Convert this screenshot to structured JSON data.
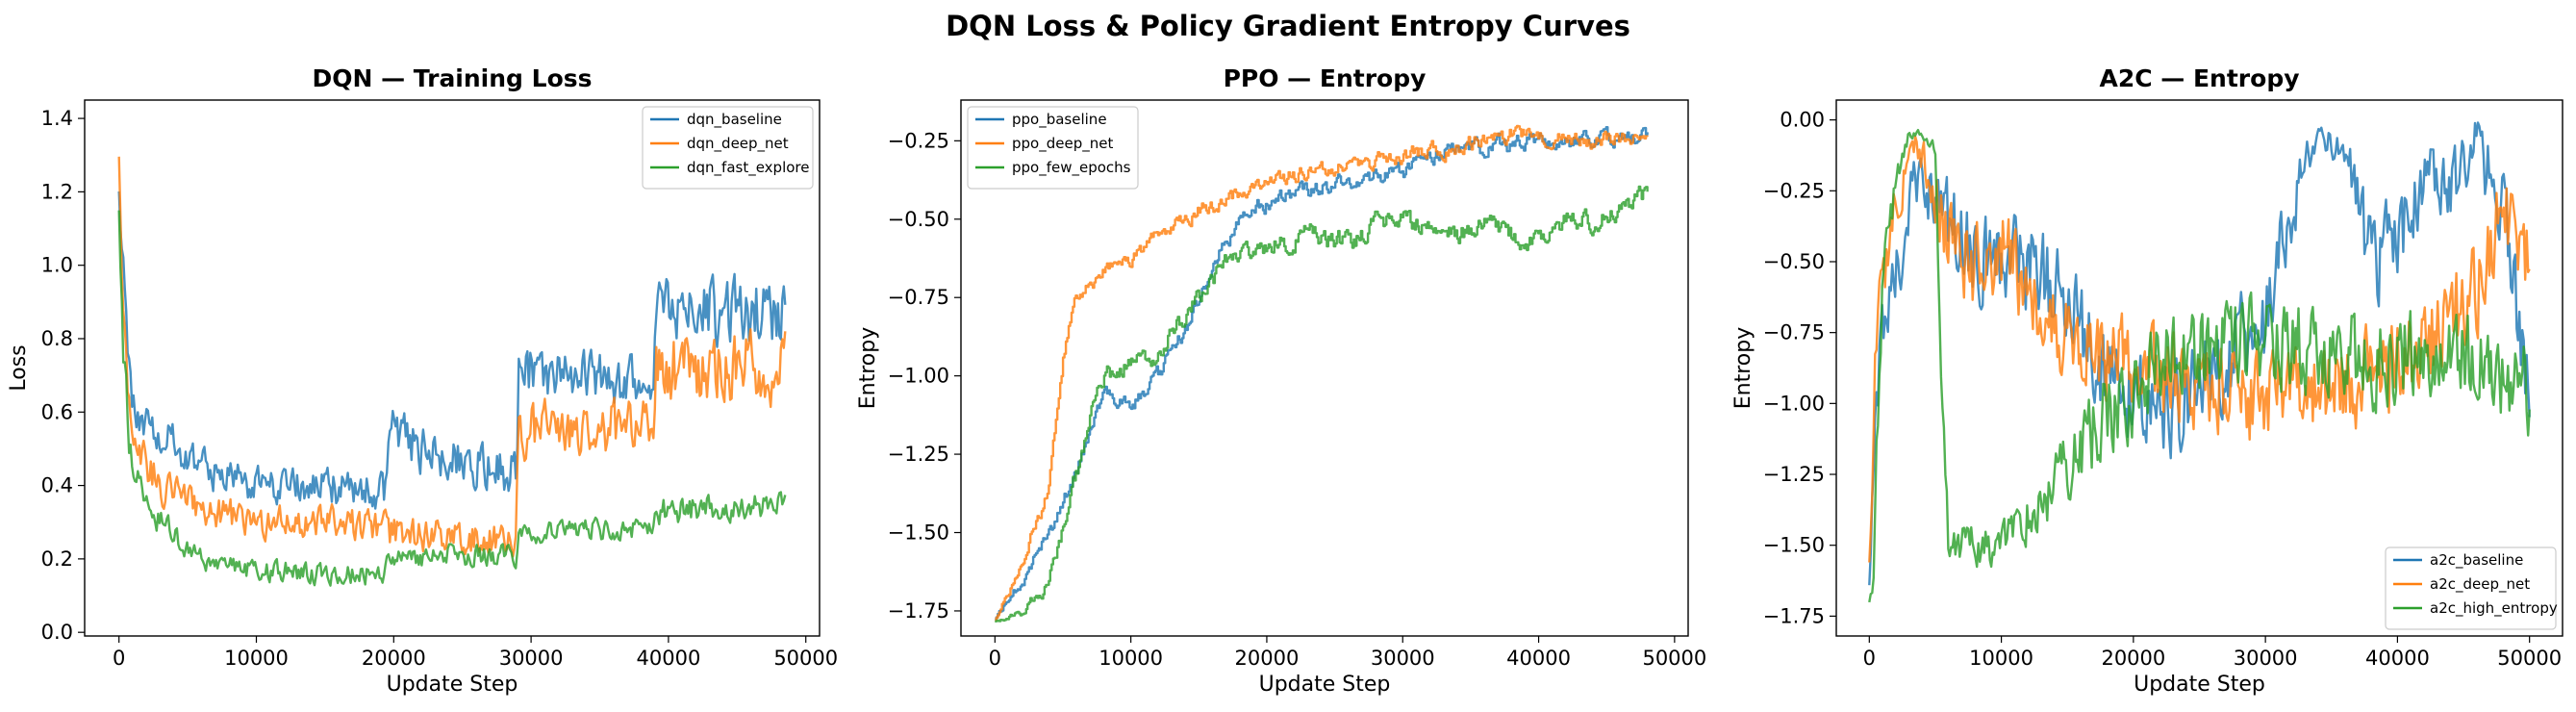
{
  "figure_title": "DQN Loss & Policy Gradient Entropy Curves",
  "colors": {
    "blue": "#1f77b4",
    "orange": "#ff7f0e",
    "green": "#2ca02c"
  },
  "chart_data": [
    {
      "type": "line",
      "title": "DQN — Training Loss",
      "xlabel": "Update Step",
      "ylabel": "Loss",
      "xlim": [
        -2500,
        51000
      ],
      "ylim": [
        -0.01,
        1.45
      ],
      "xticks": [
        0,
        10000,
        20000,
        30000,
        40000,
        50000
      ],
      "yticks": [
        0.0,
        0.2,
        0.4,
        0.6,
        0.8,
        1.0,
        1.2,
        1.4
      ],
      "ytick_labels": [
        "0.0",
        "0.2",
        "0.4",
        "0.6",
        "0.8",
        "1.0",
        "1.2",
        "1.4"
      ],
      "legend_loc": "upper-right",
      "series": [
        {
          "name": "dqn_baseline",
          "color": "blue",
          "x": [
            0,
            500,
            1000,
            1500,
            3000,
            5000,
            8000,
            12000,
            16000,
            19400,
            19600,
            22000,
            25000,
            28900,
            29100,
            32000,
            35000,
            38900,
            39100,
            42000,
            45000,
            48500
          ],
          "y": [
            1.15,
            0.85,
            0.62,
            0.58,
            0.55,
            0.47,
            0.42,
            0.4,
            0.39,
            0.38,
            0.55,
            0.5,
            0.46,
            0.44,
            0.72,
            0.7,
            0.69,
            0.68,
            0.9,
            0.88,
            0.87,
            0.87
          ],
          "amp": [
            0.08,
            0.1,
            0.07,
            0.07,
            0.07,
            0.07,
            0.07,
            0.07,
            0.07,
            0.07,
            0.09,
            0.09,
            0.09,
            0.09,
            0.1,
            0.1,
            0.1,
            0.1,
            0.13,
            0.13,
            0.13,
            0.13
          ]
        },
        {
          "name": "dqn_deep_net",
          "color": "orange",
          "x": [
            0,
            300,
            800,
            1500,
            3000,
            6000,
            10000,
            15000,
            19400,
            19600,
            24000,
            28900,
            29100,
            34000,
            38900,
            39100,
            44000,
            48500
          ],
          "y": [
            1.3,
            0.95,
            0.6,
            0.5,
            0.4,
            0.34,
            0.3,
            0.3,
            0.29,
            0.27,
            0.26,
            0.25,
            0.55,
            0.56,
            0.56,
            0.72,
            0.72,
            0.72
          ],
          "amp": [
            0.1,
            0.12,
            0.08,
            0.08,
            0.07,
            0.06,
            0.06,
            0.06,
            0.06,
            0.06,
            0.06,
            0.06,
            0.1,
            0.1,
            0.1,
            0.13,
            0.13,
            0.13
          ]
        },
        {
          "name": "dqn_fast_explore",
          "color": "green",
          "x": [
            0,
            300,
            800,
            1500,
            3000,
            6000,
            10000,
            15000,
            19400,
            19600,
            24000,
            28900,
            29100,
            34000,
            38900,
            39100,
            44000,
            48500
          ],
          "y": [
            1.15,
            0.75,
            0.5,
            0.4,
            0.3,
            0.2,
            0.17,
            0.16,
            0.16,
            0.2,
            0.21,
            0.21,
            0.27,
            0.28,
            0.28,
            0.33,
            0.34,
            0.35
          ],
          "amp": [
            0.08,
            0.1,
            0.07,
            0.06,
            0.05,
            0.04,
            0.04,
            0.04,
            0.04,
            0.04,
            0.04,
            0.04,
            0.04,
            0.04,
            0.04,
            0.05,
            0.05,
            0.05
          ]
        }
      ]
    },
    {
      "type": "line",
      "title": "PPO — Entropy",
      "xlabel": "Update Step",
      "ylabel": "Entropy",
      "xlim": [
        -2500,
        51000
      ],
      "ylim": [
        -1.83,
        -0.12
      ],
      "xticks": [
        0,
        10000,
        20000,
        30000,
        40000,
        50000
      ],
      "yticks": [
        -1.75,
        -1.5,
        -1.25,
        -1.0,
        -0.75,
        -0.5,
        -0.25
      ],
      "ytick_labels": [
        "−1.75",
        "−1.50",
        "−1.25",
        "−1.00",
        "−0.75",
        "−0.50",
        "−0.25"
      ],
      "legend_loc": "upper-left",
      "series": [
        {
          "name": "ppo_baseline",
          "color": "blue",
          "x": [
            0,
            2000,
            4000,
            6000,
            8000,
            10000,
            12000,
            14000,
            16000,
            18000,
            20000,
            22000,
            24000,
            26000,
            28000,
            30000,
            32000,
            34000,
            36000,
            38000,
            40000,
            42000,
            44000,
            46000,
            48000
          ],
          "y": [
            -1.78,
            -1.65,
            -1.5,
            -1.3,
            -1.05,
            -1.1,
            -1.0,
            -0.85,
            -0.65,
            -0.5,
            -0.45,
            -0.42,
            -0.4,
            -0.38,
            -0.37,
            -0.35,
            -0.3,
            -0.28,
            -0.27,
            -0.26,
            -0.25,
            -0.25,
            -0.24,
            -0.24,
            -0.23
          ],
          "amp": [
            0.01,
            0.03,
            0.04,
            0.04,
            0.04,
            0.04,
            0.04,
            0.04,
            0.04,
            0.04,
            0.04,
            0.04,
            0.04,
            0.04,
            0.04,
            0.04,
            0.04,
            0.04,
            0.04,
            0.04,
            0.04,
            0.04,
            0.04,
            0.04,
            0.04
          ]
        },
        {
          "name": "ppo_deep_net",
          "color": "orange",
          "x": [
            0,
            2000,
            4000,
            5000,
            6000,
            8000,
            10000,
            12000,
            14000,
            16000,
            18000,
            20000,
            22000,
            24000,
            26000,
            28000,
            30000,
            32000,
            34000,
            36000,
            38000,
            40000,
            42000,
            44000,
            46000,
            48000
          ],
          "y": [
            -1.78,
            -1.6,
            -1.35,
            -0.95,
            -0.75,
            -0.65,
            -0.62,
            -0.55,
            -0.5,
            -0.45,
            -0.42,
            -0.38,
            -0.36,
            -0.35,
            -0.33,
            -0.32,
            -0.3,
            -0.28,
            -0.27,
            -0.25,
            -0.23,
            -0.23,
            -0.24,
            -0.25,
            -0.24,
            -0.24
          ],
          "amp": [
            0.01,
            0.03,
            0.04,
            0.05,
            0.04,
            0.04,
            0.04,
            0.04,
            0.04,
            0.04,
            0.04,
            0.04,
            0.04,
            0.04,
            0.04,
            0.04,
            0.04,
            0.04,
            0.04,
            0.04,
            0.04,
            0.04,
            0.04,
            0.04,
            0.04,
            0.04
          ]
        },
        {
          "name": "ppo_few_epochs",
          "color": "green",
          "x": [
            0,
            2000,
            4000,
            6000,
            8000,
            10000,
            12000,
            14000,
            16000,
            18000,
            20000,
            22000,
            24000,
            26000,
            28000,
            30000,
            32000,
            34000,
            36000,
            38000,
            40000,
            42000,
            44000,
            46000,
            48000
          ],
          "y": [
            -1.78,
            -1.75,
            -1.65,
            -1.3,
            -1.0,
            -0.95,
            -0.92,
            -0.8,
            -0.7,
            -0.6,
            -0.58,
            -0.56,
            -0.55,
            -0.58,
            -0.52,
            -0.5,
            -0.52,
            -0.55,
            -0.52,
            -0.55,
            -0.58,
            -0.5,
            -0.5,
            -0.47,
            -0.42
          ],
          "amp": [
            0.01,
            0.02,
            0.04,
            0.05,
            0.05,
            0.05,
            0.05,
            0.05,
            0.05,
            0.05,
            0.05,
            0.05,
            0.05,
            0.05,
            0.05,
            0.05,
            0.05,
            0.05,
            0.05,
            0.05,
            0.05,
            0.05,
            0.05,
            0.05,
            0.05
          ]
        }
      ]
    },
    {
      "type": "line",
      "title": "A2C — Entropy",
      "xlabel": "Update Step",
      "ylabel": "Entropy",
      "xlim": [
        -2500,
        52500
      ],
      "ylim": [
        -1.82,
        0.07
      ],
      "xticks": [
        0,
        10000,
        20000,
        30000,
        40000,
        50000
      ],
      "yticks": [
        -1.75,
        -1.5,
        -1.25,
        -1.0,
        -0.75,
        -0.5,
        -0.25,
        0.0
      ],
      "ytick_labels": [
        "−1.75",
        "−1.50",
        "−1.25",
        "−1.00",
        "−0.75",
        "−0.50",
        "−0.25",
        "0.00"
      ],
      "legend_loc": "lower-right",
      "series": [
        {
          "name": "a2c_baseline",
          "color": "blue",
          "x": [
            0,
            500,
            1000,
            2000,
            3000,
            4000,
            6000,
            8000,
            10000,
            14000,
            18000,
            22000,
            26000,
            30000,
            32000,
            34000,
            36000,
            38000,
            40000,
            42000,
            44000,
            46000,
            48000,
            50000
          ],
          "y": [
            -1.6,
            -1.0,
            -0.7,
            -0.6,
            -0.3,
            -0.2,
            -0.35,
            -0.5,
            -0.45,
            -0.6,
            -0.9,
            -1.05,
            -0.9,
            -0.7,
            -0.3,
            -0.05,
            -0.1,
            -0.5,
            -0.45,
            -0.2,
            -0.25,
            -0.1,
            -0.3,
            -1.0
          ],
          "amp": [
            0.12,
            0.16,
            0.18,
            0.2,
            0.18,
            0.15,
            0.22,
            0.22,
            0.22,
            0.22,
            0.22,
            0.22,
            0.22,
            0.22,
            0.18,
            0.05,
            0.12,
            0.22,
            0.22,
            0.16,
            0.16,
            0.15,
            0.2,
            0.2
          ]
        },
        {
          "name": "a2c_deep_net",
          "color": "orange",
          "x": [
            0,
            500,
            1000,
            2000,
            3000,
            4000,
            6000,
            8000,
            10000,
            14000,
            18000,
            22000,
            26000,
            30000,
            34000,
            38000,
            42000,
            46000,
            48000,
            50000
          ],
          "y": [
            -1.5,
            -0.8,
            -0.6,
            -0.3,
            -0.1,
            -0.1,
            -0.4,
            -0.55,
            -0.45,
            -0.75,
            -0.85,
            -0.9,
            -0.95,
            -1.0,
            -0.95,
            -0.9,
            -0.8,
            -0.6,
            -0.3,
            -0.5
          ],
          "amp": [
            0.12,
            0.18,
            0.2,
            0.15,
            0.1,
            0.1,
            0.22,
            0.22,
            0.22,
            0.22,
            0.22,
            0.22,
            0.22,
            0.22,
            0.22,
            0.22,
            0.22,
            0.22,
            0.2,
            0.2
          ]
        },
        {
          "name": "a2c_high_entropy",
          "color": "green",
          "x": [
            0,
            300,
            600,
            1000,
            2000,
            3000,
            4000,
            5000,
            5500,
            6000,
            8000,
            10000,
            12000,
            14000,
            16000,
            18000,
            20000,
            22000,
            24000,
            26000,
            28000,
            30000,
            34000,
            38000,
            42000,
            46000,
            50000
          ],
          "y": [
            -1.7,
            -1.65,
            -1.1,
            -0.6,
            -0.2,
            -0.05,
            -0.05,
            -0.1,
            -1.0,
            -1.5,
            -1.5,
            -1.5,
            -1.4,
            -1.3,
            -1.15,
            -1.05,
            -0.95,
            -0.85,
            -0.8,
            -0.8,
            -0.78,
            -0.8,
            -0.8,
            -0.85,
            -0.8,
            -0.85,
            -0.95
          ],
          "amp": [
            0.03,
            0.05,
            0.15,
            0.15,
            0.08,
            0.02,
            0.02,
            0.05,
            0.1,
            0.1,
            0.1,
            0.1,
            0.12,
            0.15,
            0.2,
            0.22,
            0.22,
            0.22,
            0.22,
            0.22,
            0.22,
            0.22,
            0.22,
            0.22,
            0.22,
            0.22,
            0.22
          ]
        }
      ]
    }
  ]
}
